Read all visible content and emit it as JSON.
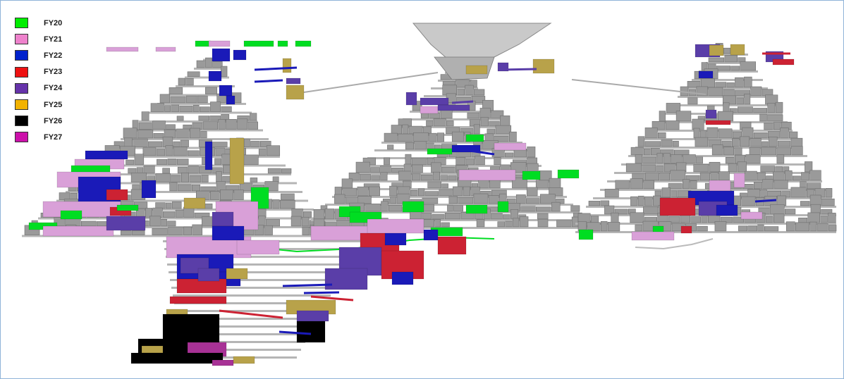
{
  "legend": {
    "items": [
      {
        "label": "FY20",
        "color": "#00ee00"
      },
      {
        "label": "FY21",
        "color": "#ee82cc"
      },
      {
        "label": "FY22",
        "color": "#0022cc"
      },
      {
        "label": "FY23",
        "color": "#ee1111"
      },
      {
        "label": "FY24",
        "color": "#6633aa"
      },
      {
        "label": "FY25",
        "color": "#f2b200"
      },
      {
        "label": "FY26",
        "color": "#000000"
      },
      {
        "label": "FY27",
        "color": "#cc11aa"
      }
    ]
  },
  "render_colors": {
    "FY20": "#00dd22",
    "FY21": "#d9a0d8",
    "FY22": "#1a1ab8",
    "FY23": "#cc2233",
    "FY24": "#5a3ea8",
    "FY25": "#b8a24a",
    "FY26": "#000000",
    "FY27": "#a83296",
    "stope_gray": "#9a9a9a",
    "drift_gray": "#b5b5b5",
    "pit_gray": "#c9c9c9"
  }
}
